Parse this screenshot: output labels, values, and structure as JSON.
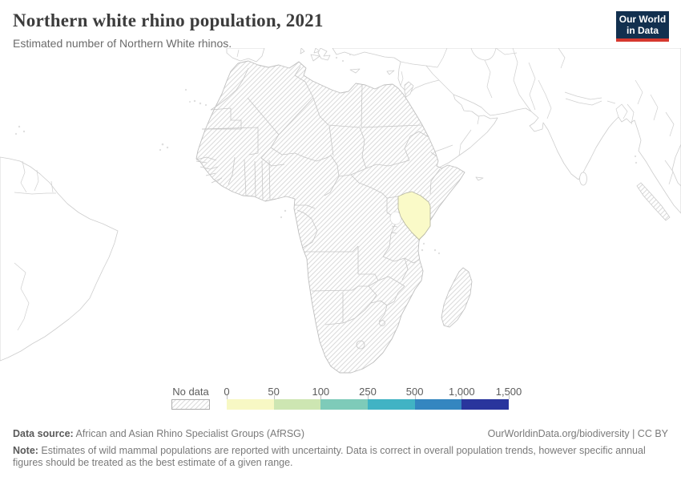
{
  "header": {
    "title": "Northern white rhino population, 2021",
    "subtitle": "Estimated number of Northern White rhinos.",
    "logo": {
      "line1": "Our World",
      "line2": "in Data",
      "bg": "#12304f",
      "accent": "#d6382e"
    }
  },
  "map": {
    "highlight_country": "Kenya",
    "highlight_color": "#fafac8",
    "no_data_pattern_color": "#dcdcdc",
    "border_color": "#c6c6c6"
  },
  "legend": {
    "no_data_label": "No data",
    "tick_labels": [
      "0",
      "50",
      "100",
      "250",
      "500",
      "1,000",
      "1,500"
    ],
    "colors": [
      "#f7f8c4",
      "#cde6b2",
      "#7ecbb9",
      "#41b3c4",
      "#3486c0",
      "#29359d"
    ]
  },
  "footer": {
    "source_label": "Data source:",
    "source_text": " African and Asian Rhino Specialist Groups (AfRSG)",
    "link_text": "OurWorldinData.org/biodiversity | CC BY",
    "note_label": "Note:",
    "note_text": " Estimates of wild mammal populations are reported with uncertainty. Data is correct in overall population trends, however specific annual figures should be treated as the best estimate of a given range."
  },
  "chart_data": {
    "type": "choropleth",
    "title": "Northern white rhino population, 2021",
    "subtitle": "Estimated number of Northern White rhinos.",
    "year": 2021,
    "unit": "rhinos",
    "bin_edges": [
      0,
      50,
      100,
      250,
      500,
      1000,
      1500
    ],
    "legend_bins": [
      {
        "label": "0–50",
        "color": "#f7f8c4"
      },
      {
        "label": "50–100",
        "color": "#cde6b2"
      },
      {
        "label": "100–250",
        "color": "#7ecbb9"
      },
      {
        "label": "250–500",
        "color": "#41b3c4"
      },
      {
        "label": "500–1,000",
        "color": "#3486c0"
      },
      {
        "label": "1,000–1,500",
        "color": "#29359d"
      }
    ],
    "data_points": [
      {
        "entity": "Kenya",
        "year": 2021,
        "bin": "0–50"
      }
    ],
    "no_data": "All other mapped rhino-range countries (Africa, Madagascar, Sumatra) shown hatched as No data",
    "legend_position": "bottom"
  }
}
